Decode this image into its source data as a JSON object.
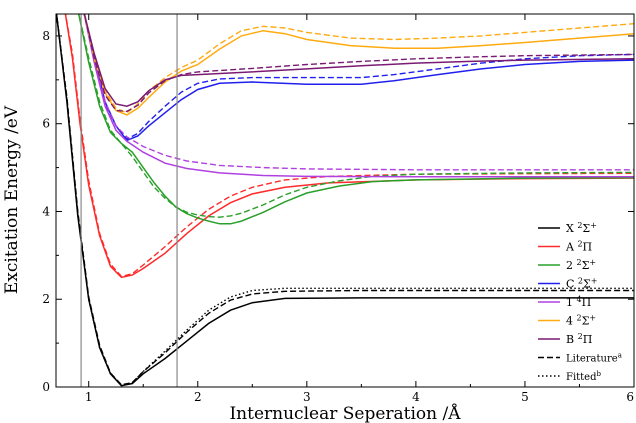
{
  "chart_data": {
    "type": "line",
    "xlabel": "Internuclear Seperation /Å",
    "ylabel": "Excitation Energy /eV",
    "xlim": [
      0.7,
      6.0
    ],
    "ylim": [
      0,
      8.5
    ],
    "xticks": [
      1,
      2,
      3,
      4,
      5,
      6
    ],
    "yticks": [
      0,
      2,
      4,
      6,
      8
    ],
    "vertical_lines": [
      0.93,
      1.81
    ],
    "legend_position": "bottom-right",
    "grid": false,
    "series": [
      {
        "name": "X ²Σ⁺",
        "label_main": "X",
        "label_sup": "2",
        "label_term": "Σ",
        "label_term_sup": "+",
        "color": "#000000",
        "solid": [
          [
            0.7,
            8.6
          ],
          [
            0.8,
            6.5
          ],
          [
            0.9,
            3.9
          ],
          [
            1.0,
            2.0
          ],
          [
            1.1,
            0.9
          ],
          [
            1.2,
            0.3
          ],
          [
            1.3,
            0.03
          ],
          [
            1.4,
            0.08
          ],
          [
            1.5,
            0.3
          ],
          [
            1.7,
            0.65
          ],
          [
            1.9,
            1.05
          ],
          [
            2.1,
            1.45
          ],
          [
            2.3,
            1.75
          ],
          [
            2.5,
            1.92
          ],
          [
            2.8,
            2.02
          ],
          [
            3.5,
            2.03
          ],
          [
            4.5,
            2.03
          ],
          [
            6.0,
            2.03
          ]
        ],
        "dashed": [
          [
            0.7,
            8.6
          ],
          [
            0.8,
            6.6
          ],
          [
            0.9,
            4.0
          ],
          [
            1.0,
            2.05
          ],
          [
            1.1,
            0.95
          ],
          [
            1.2,
            0.32
          ],
          [
            1.3,
            0.05
          ],
          [
            1.4,
            0.1
          ],
          [
            1.5,
            0.35
          ],
          [
            1.7,
            0.78
          ],
          [
            1.9,
            1.25
          ],
          [
            2.1,
            1.68
          ],
          [
            2.3,
            1.98
          ],
          [
            2.5,
            2.12
          ],
          [
            2.8,
            2.18
          ],
          [
            3.5,
            2.2
          ],
          [
            4.5,
            2.2
          ],
          [
            6.0,
            2.2
          ]
        ],
        "dotted": [
          [
            0.7,
            8.6
          ],
          [
            0.8,
            6.55
          ],
          [
            0.9,
            3.95
          ],
          [
            1.0,
            2.0
          ],
          [
            1.1,
            0.9
          ],
          [
            1.2,
            0.3
          ],
          [
            1.3,
            0.04
          ],
          [
            1.4,
            0.1
          ],
          [
            1.5,
            0.35
          ],
          [
            1.7,
            0.82
          ],
          [
            1.9,
            1.3
          ],
          [
            2.1,
            1.75
          ],
          [
            2.3,
            2.05
          ],
          [
            2.5,
            2.2
          ],
          [
            2.8,
            2.25
          ],
          [
            3.5,
            2.25
          ],
          [
            4.5,
            2.25
          ],
          [
            6.0,
            2.25
          ]
        ]
      },
      {
        "name": "A ²Π",
        "label_main": "A",
        "label_sup": "2",
        "label_term": "Π",
        "label_term_sup": "",
        "color": "#ff2a2a",
        "solid": [
          [
            0.78,
            8.6
          ],
          [
            0.85,
            7.5
          ],
          [
            0.92,
            6.0
          ],
          [
            1.0,
            4.6
          ],
          [
            1.1,
            3.45
          ],
          [
            1.2,
            2.75
          ],
          [
            1.3,
            2.5
          ],
          [
            1.4,
            2.55
          ],
          [
            1.5,
            2.7
          ],
          [
            1.7,
            3.05
          ],
          [
            1.9,
            3.5
          ],
          [
            2.1,
            3.9
          ],
          [
            2.3,
            4.2
          ],
          [
            2.5,
            4.4
          ],
          [
            2.8,
            4.55
          ],
          [
            3.2,
            4.65
          ],
          [
            4.0,
            4.72
          ],
          [
            5.0,
            4.75
          ],
          [
            6.0,
            4.76
          ]
        ],
        "dashed": [
          [
            0.78,
            8.6
          ],
          [
            0.85,
            7.6
          ],
          [
            0.92,
            6.1
          ],
          [
            1.0,
            4.7
          ],
          [
            1.1,
            3.5
          ],
          [
            1.2,
            2.8
          ],
          [
            1.3,
            2.52
          ],
          [
            1.4,
            2.58
          ],
          [
            1.5,
            2.78
          ],
          [
            1.7,
            3.2
          ],
          [
            1.9,
            3.65
          ],
          [
            2.1,
            4.05
          ],
          [
            2.3,
            4.35
          ],
          [
            2.5,
            4.55
          ],
          [
            2.8,
            4.72
          ],
          [
            3.2,
            4.8
          ],
          [
            4.0,
            4.85
          ],
          [
            5.0,
            4.86
          ],
          [
            6.0,
            4.87
          ]
        ]
      },
      {
        "name": "2 ²Σ⁺",
        "label_main": "2",
        "label_sup": "2",
        "label_term": "Σ",
        "label_term_sup": "+",
        "color": "#2aa02a",
        "solid": [
          [
            0.9,
            8.6
          ],
          [
            1.0,
            7.4
          ],
          [
            1.1,
            6.4
          ],
          [
            1.2,
            5.8
          ],
          [
            1.3,
            5.55
          ],
          [
            1.4,
            5.35
          ],
          [
            1.5,
            5.0
          ],
          [
            1.6,
            4.65
          ],
          [
            1.7,
            4.35
          ],
          [
            1.8,
            4.1
          ],
          [
            1.9,
            3.95
          ],
          [
            2.0,
            3.85
          ],
          [
            2.1,
            3.78
          ],
          [
            2.2,
            3.72
          ],
          [
            2.3,
            3.72
          ],
          [
            2.4,
            3.78
          ],
          [
            2.6,
            3.98
          ],
          [
            2.8,
            4.22
          ],
          [
            3.0,
            4.42
          ],
          [
            3.3,
            4.58
          ],
          [
            3.6,
            4.68
          ],
          [
            4.0,
            4.72
          ],
          [
            5.0,
            4.76
          ],
          [
            6.0,
            4.77
          ]
        ],
        "dashed": [
          [
            0.9,
            8.6
          ],
          [
            1.0,
            7.5
          ],
          [
            1.1,
            6.5
          ],
          [
            1.2,
            5.85
          ],
          [
            1.3,
            5.55
          ],
          [
            1.4,
            5.25
          ],
          [
            1.5,
            4.9
          ],
          [
            1.6,
            4.55
          ],
          [
            1.7,
            4.3
          ],
          [
            1.8,
            4.1
          ],
          [
            1.9,
            3.98
          ],
          [
            2.0,
            3.92
          ],
          [
            2.1,
            3.88
          ],
          [
            2.2,
            3.87
          ],
          [
            2.3,
            3.9
          ],
          [
            2.4,
            3.96
          ],
          [
            2.6,
            4.15
          ],
          [
            2.8,
            4.38
          ],
          [
            3.0,
            4.55
          ],
          [
            3.3,
            4.7
          ],
          [
            3.6,
            4.8
          ],
          [
            4.0,
            4.85
          ],
          [
            5.0,
            4.88
          ],
          [
            6.0,
            4.89
          ]
        ]
      },
      {
        "name": "C ²Σ⁺",
        "label_main": "C",
        "label_sup": "2",
        "label_term": "Σ",
        "label_term_sup": "+",
        "color": "#2020ee",
        "solid": [
          [
            0.95,
            8.6
          ],
          [
            1.05,
            7.5
          ],
          [
            1.15,
            6.5
          ],
          [
            1.25,
            5.95
          ],
          [
            1.35,
            5.62
          ],
          [
            1.45,
            5.72
          ],
          [
            1.55,
            5.95
          ],
          [
            1.7,
            6.25
          ],
          [
            1.85,
            6.55
          ],
          [
            2.0,
            6.78
          ],
          [
            2.2,
            6.92
          ],
          [
            2.5,
            6.95
          ],
          [
            3.0,
            6.9
          ],
          [
            3.5,
            6.9
          ],
          [
            3.8,
            6.98
          ],
          [
            4.2,
            7.12
          ],
          [
            4.6,
            7.25
          ],
          [
            5.0,
            7.35
          ],
          [
            5.5,
            7.42
          ],
          [
            6.0,
            7.45
          ]
        ],
        "dashed": [
          [
            0.95,
            8.6
          ],
          [
            1.05,
            7.5
          ],
          [
            1.15,
            6.45
          ],
          [
            1.25,
            5.95
          ],
          [
            1.35,
            5.65
          ],
          [
            1.45,
            5.78
          ],
          [
            1.55,
            6.05
          ],
          [
            1.7,
            6.4
          ],
          [
            1.85,
            6.72
          ],
          [
            2.0,
            6.92
          ],
          [
            2.2,
            7.02
          ],
          [
            2.5,
            7.05
          ],
          [
            3.0,
            7.05
          ],
          [
            3.5,
            7.05
          ],
          [
            3.8,
            7.12
          ],
          [
            4.2,
            7.25
          ],
          [
            4.6,
            7.38
          ],
          [
            5.0,
            7.48
          ],
          [
            5.5,
            7.55
          ],
          [
            6.0,
            7.58
          ]
        ]
      },
      {
        "name": "1 ⁴Π",
        "label_main": "1",
        "label_sup": "4",
        "label_term": "Π",
        "label_term_sup": "",
        "color": "#b040e0",
        "solid": [
          [
            0.95,
            8.6
          ],
          [
            1.05,
            7.4
          ],
          [
            1.15,
            6.4
          ],
          [
            1.25,
            5.85
          ],
          [
            1.35,
            5.6
          ],
          [
            1.5,
            5.35
          ],
          [
            1.7,
            5.1
          ],
          [
            1.9,
            4.98
          ],
          [
            2.2,
            4.88
          ],
          [
            2.6,
            4.82
          ],
          [
            3.0,
            4.8
          ],
          [
            4.0,
            4.79
          ],
          [
            5.0,
            4.79
          ],
          [
            6.0,
            4.79
          ]
        ],
        "dashed": [
          [
            0.95,
            8.6
          ],
          [
            1.05,
            7.5
          ],
          [
            1.15,
            6.5
          ],
          [
            1.25,
            5.95
          ],
          [
            1.35,
            5.7
          ],
          [
            1.5,
            5.48
          ],
          [
            1.7,
            5.28
          ],
          [
            1.9,
            5.15
          ],
          [
            2.2,
            5.05
          ],
          [
            2.6,
            5.0
          ],
          [
            3.0,
            4.97
          ],
          [
            4.0,
            4.95
          ],
          [
            5.0,
            4.95
          ],
          [
            6.0,
            4.95
          ]
        ]
      },
      {
        "name": "4 ²Σ⁺",
        "label_main": "4",
        "label_sup": "2",
        "label_term": "Σ",
        "label_term_sup": "+",
        "color": "#ffaa10",
        "solid": [
          [
            0.95,
            8.6
          ],
          [
            1.05,
            7.5
          ],
          [
            1.15,
            6.7
          ],
          [
            1.25,
            6.3
          ],
          [
            1.35,
            6.2
          ],
          [
            1.45,
            6.35
          ],
          [
            1.55,
            6.6
          ],
          [
            1.7,
            6.95
          ],
          [
            1.85,
            7.2
          ],
          [
            2.0,
            7.35
          ],
          [
            2.2,
            7.7
          ],
          [
            2.4,
            8.0
          ],
          [
            2.6,
            8.12
          ],
          [
            2.8,
            8.05
          ],
          [
            3.0,
            7.92
          ],
          [
            3.4,
            7.78
          ],
          [
            3.8,
            7.72
          ],
          [
            4.2,
            7.72
          ],
          [
            4.6,
            7.78
          ],
          [
            5.0,
            7.85
          ],
          [
            5.5,
            7.95
          ],
          [
            6.0,
            8.05
          ]
        ],
        "dashed": [
          [
            0.95,
            8.6
          ],
          [
            1.05,
            7.55
          ],
          [
            1.15,
            6.75
          ],
          [
            1.25,
            6.35
          ],
          [
            1.35,
            6.25
          ],
          [
            1.45,
            6.45
          ],
          [
            1.55,
            6.75
          ],
          [
            1.7,
            7.05
          ],
          [
            1.85,
            7.28
          ],
          [
            2.0,
            7.45
          ],
          [
            2.2,
            7.82
          ],
          [
            2.4,
            8.12
          ],
          [
            2.6,
            8.22
          ],
          [
            2.8,
            8.18
          ],
          [
            3.0,
            8.08
          ],
          [
            3.4,
            7.95
          ],
          [
            3.8,
            7.92
          ],
          [
            4.2,
            7.95
          ],
          [
            4.6,
            8.0
          ],
          [
            5.0,
            8.08
          ],
          [
            5.5,
            8.18
          ],
          [
            6.0,
            8.28
          ]
        ]
      },
      {
        "name": "B ²Π",
        "label_main": "B",
        "label_sup": "2",
        "label_term": "Π",
        "label_term_sup": "",
        "color": "#7a1a72",
        "solid": [
          [
            0.95,
            8.6
          ],
          [
            1.05,
            7.6
          ],
          [
            1.15,
            6.8
          ],
          [
            1.25,
            6.45
          ],
          [
            1.35,
            6.4
          ],
          [
            1.45,
            6.5
          ],
          [
            1.55,
            6.75
          ],
          [
            1.7,
            7.0
          ],
          [
            1.85,
            7.1
          ],
          [
            2.0,
            7.12
          ],
          [
            2.5,
            7.18
          ],
          [
            3.0,
            7.25
          ],
          [
            3.5,
            7.32
          ],
          [
            4.0,
            7.38
          ],
          [
            4.5,
            7.42
          ],
          [
            5.0,
            7.45
          ],
          [
            6.0,
            7.48
          ]
        ],
        "dashed": [
          [
            0.95,
            8.6
          ],
          [
            1.05,
            7.5
          ],
          [
            1.15,
            6.65
          ],
          [
            1.25,
            6.3
          ],
          [
            1.35,
            6.28
          ],
          [
            1.45,
            6.42
          ],
          [
            1.55,
            6.7
          ],
          [
            1.7,
            6.98
          ],
          [
            1.85,
            7.12
          ],
          [
            2.0,
            7.18
          ],
          [
            2.5,
            7.26
          ],
          [
            3.0,
            7.35
          ],
          [
            3.5,
            7.42
          ],
          [
            4.0,
            7.48
          ],
          [
            4.5,
            7.52
          ],
          [
            5.0,
            7.55
          ],
          [
            6.0,
            7.58
          ]
        ]
      }
    ],
    "legend_extra": [
      {
        "label": "Literature",
        "sup": "a",
        "style": "dashed"
      },
      {
        "label": "Fitted",
        "sup": "b",
        "style": "dotted"
      }
    ]
  }
}
